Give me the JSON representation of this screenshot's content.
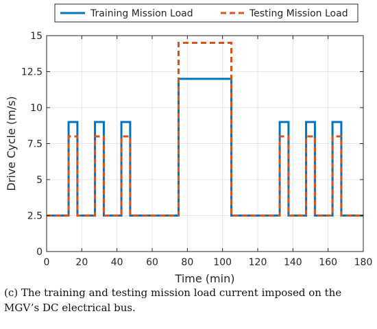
{
  "chart_data": {
    "type": "line",
    "xlabel": "Time (min)",
    "ylabel": "Drive Cycle (m/s)",
    "xlim": [
      0,
      180
    ],
    "ylim": [
      0,
      15
    ],
    "xticks": [
      0,
      20,
      40,
      60,
      80,
      100,
      120,
      140,
      160,
      180
    ],
    "yticks": [
      0,
      2.5,
      5,
      7.5,
      10,
      12.5,
      15
    ],
    "xtick_labels": [
      "0",
      "20",
      "40",
      "60",
      "80",
      "100",
      "120",
      "140",
      "160",
      "180"
    ],
    "ytick_labels": [
      "0",
      "2.5",
      "5",
      "7.5",
      "10",
      "12.5",
      "15"
    ],
    "grid": true,
    "legend_position": "top",
    "series": [
      {
        "name": "Training Mission Load",
        "color": "#0072BD",
        "style": "solid",
        "x": [
          0,
          12.5,
          12.5,
          17.5,
          17.5,
          27.5,
          27.5,
          32.5,
          32.5,
          42.5,
          42.5,
          47.5,
          47.5,
          75,
          75,
          105,
          105,
          132.5,
          132.5,
          137.5,
          137.5,
          147.5,
          147.5,
          152.5,
          152.5,
          162.5,
          162.5,
          167.5,
          167.5,
          180
        ],
        "y": [
          2.5,
          2.5,
          9,
          9,
          2.5,
          2.5,
          9,
          9,
          2.5,
          2.5,
          9,
          9,
          2.5,
          2.5,
          12,
          12,
          2.5,
          2.5,
          9,
          9,
          2.5,
          2.5,
          9,
          9,
          2.5,
          2.5,
          9,
          9,
          2.5,
          2.5
        ]
      },
      {
        "name": "Testing Mission Load",
        "color": "#D95319",
        "style": "dashed",
        "x": [
          0,
          12.5,
          12.5,
          17.5,
          17.5,
          27.5,
          27.5,
          32.5,
          32.5,
          42.5,
          42.5,
          47.5,
          47.5,
          75,
          75,
          105,
          105,
          132.5,
          132.5,
          137.5,
          137.5,
          147.5,
          147.5,
          152.5,
          152.5,
          162.5,
          162.5,
          167.5,
          167.5,
          180
        ],
        "y": [
          2.5,
          2.5,
          8,
          8,
          2.5,
          2.5,
          8,
          8,
          2.5,
          2.5,
          8,
          8,
          2.5,
          2.5,
          14.5,
          14.5,
          2.5,
          2.5,
          8,
          8,
          2.5,
          2.5,
          8,
          8,
          2.5,
          2.5,
          8,
          8,
          2.5,
          2.5
        ]
      }
    ]
  },
  "caption": "(c) The training and testing mission load current imposed on the MGV’s DC electrical bus."
}
